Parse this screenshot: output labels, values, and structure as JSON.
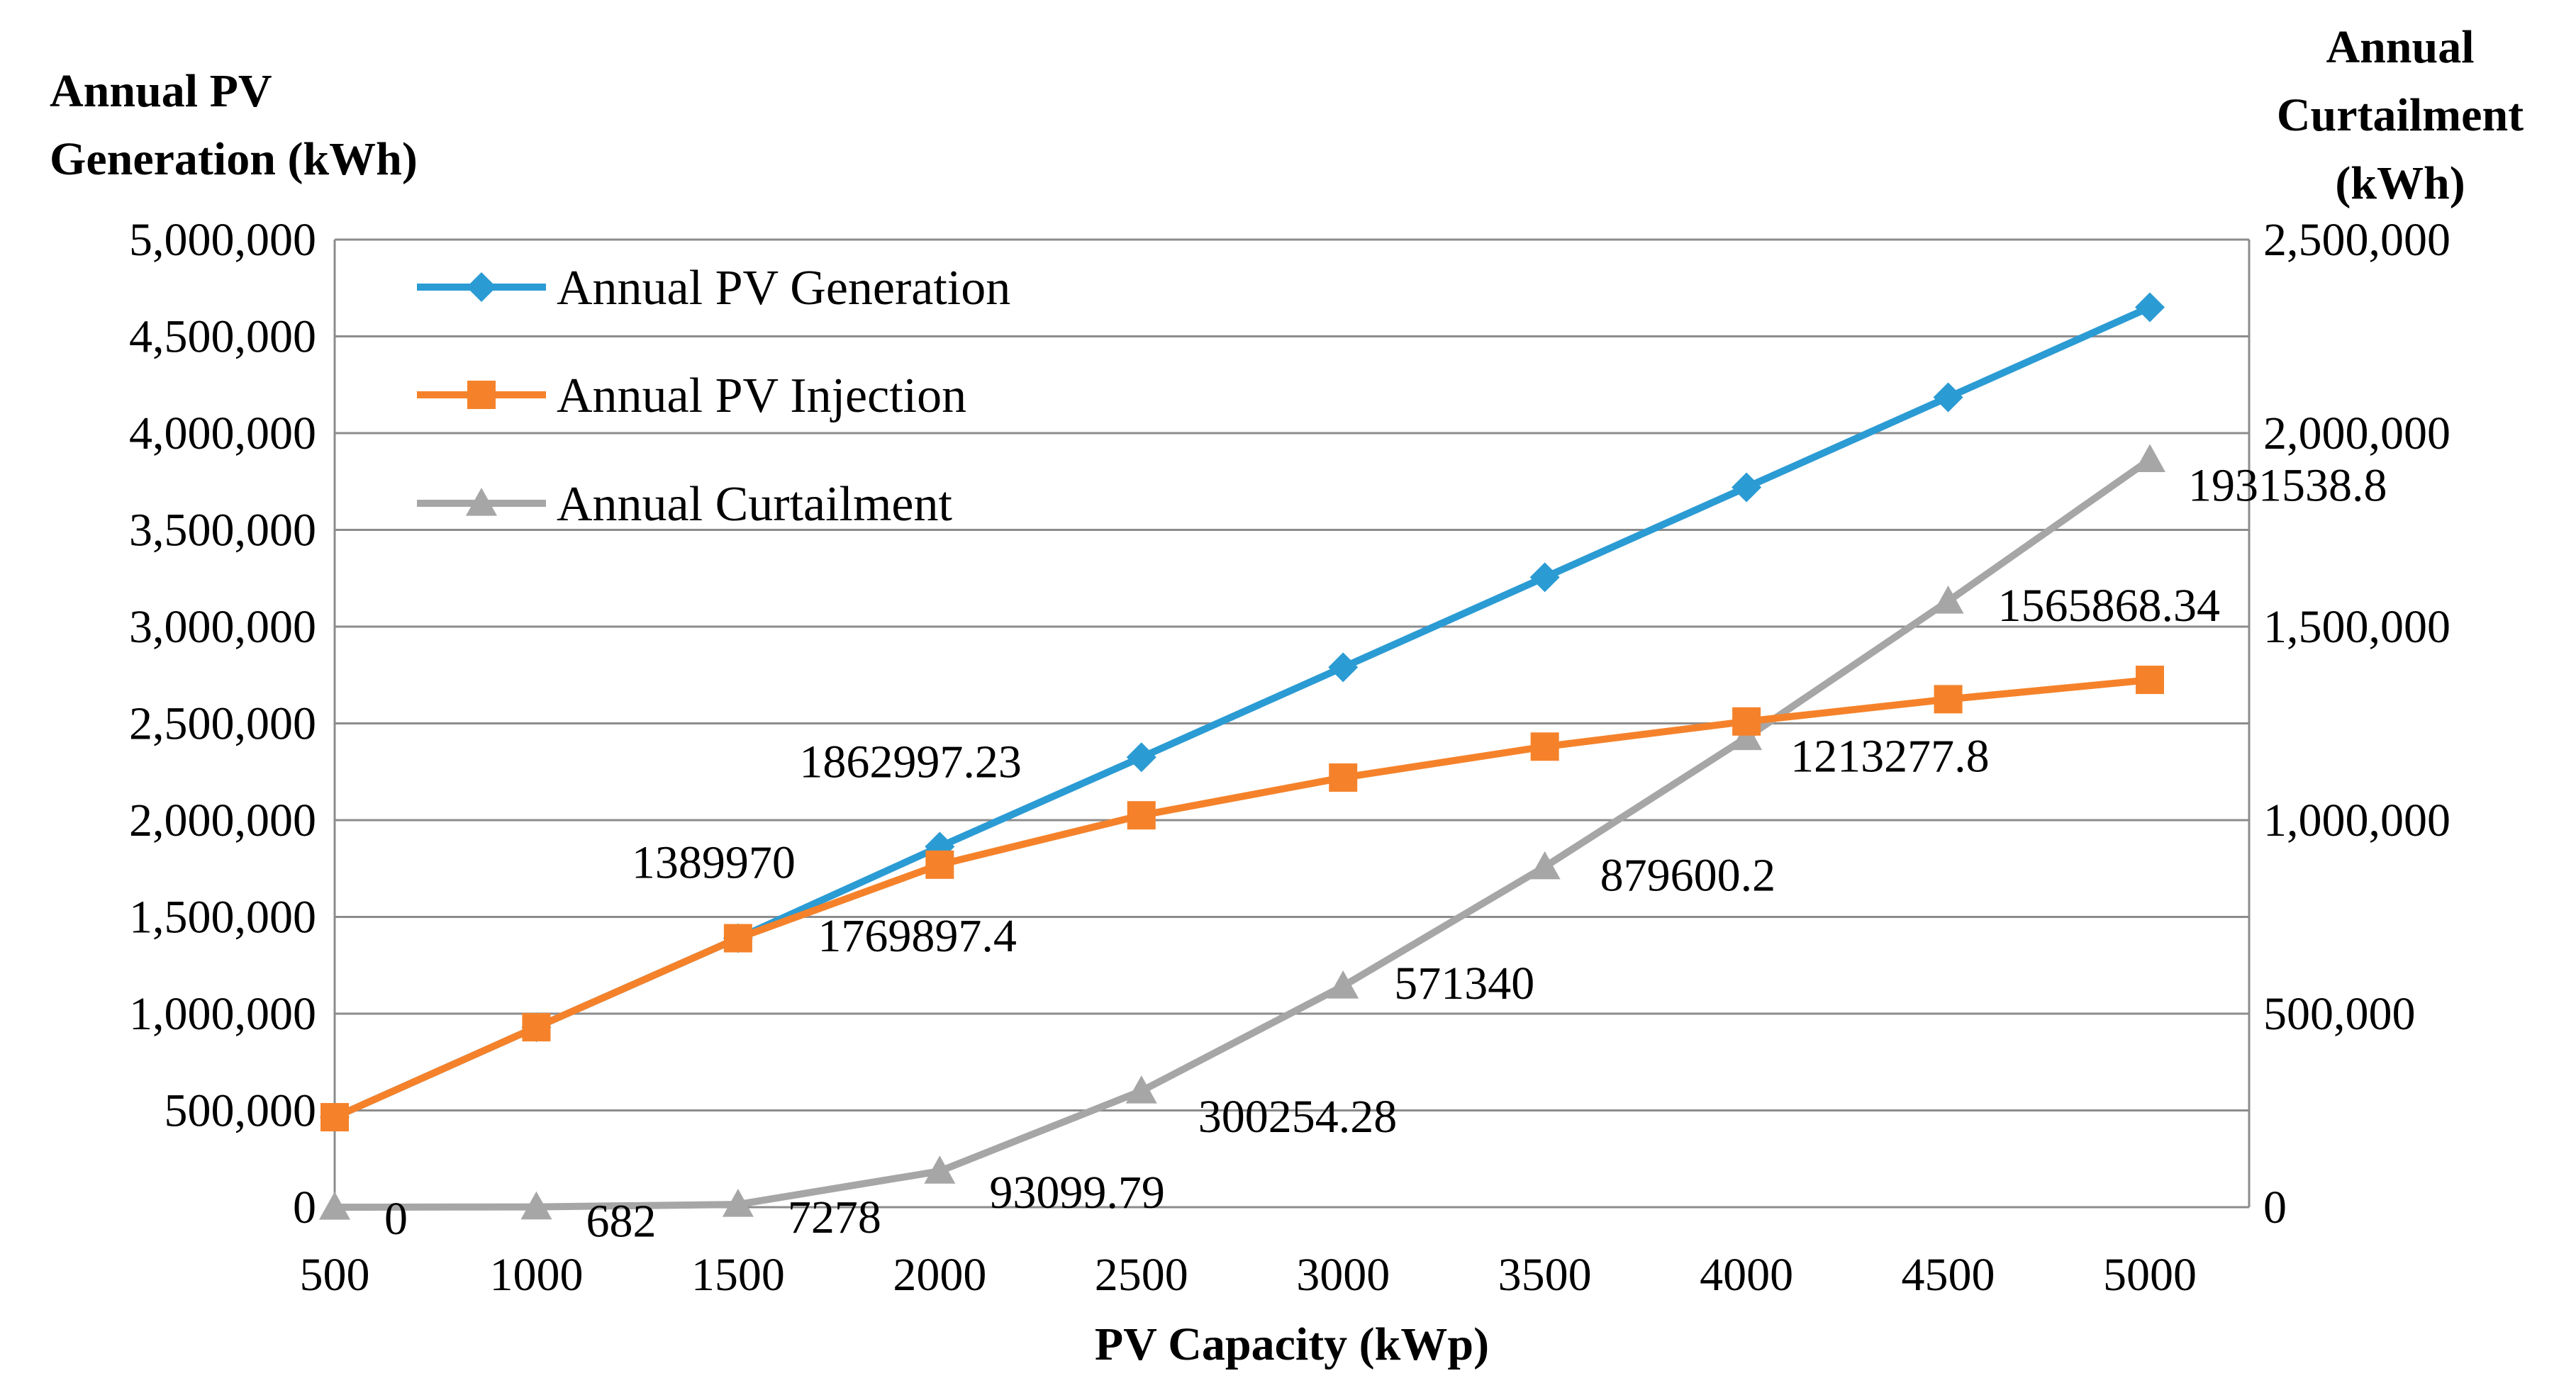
{
  "chart_data": {
    "type": "line",
    "x": [
      500,
      1000,
      1500,
      2000,
      2500,
      3000,
      3500,
      4000,
      4500,
      5000
    ],
    "xlabel": "PV Capacity (kWp)",
    "ylabel_left": [
      "Annual PV",
      "Generation (kWh)"
    ],
    "ylabel_right": [
      "Annual",
      "Curtailment",
      "(kWh)"
    ],
    "ylim_left": [
      0,
      5000000
    ],
    "ylim_right": [
      0,
      2500000
    ],
    "y_ticks_left": [
      "0",
      "500,000",
      "1,000,000",
      "1,500,000",
      "2,000,000",
      "2,500,000",
      "3,000,000",
      "3,500,000",
      "4,000,000",
      "4,500,000",
      "5,000,000"
    ],
    "y_ticks_right": [
      "0",
      "500,000",
      "1,000,000",
      "1,500,000",
      "2,000,000",
      "2,500,000"
    ],
    "x_ticks": [
      "500",
      "1000",
      "1500",
      "2000",
      "2500",
      "3000",
      "3500",
      "4000",
      "4500",
      "5000"
    ],
    "grid": true,
    "legend_position": "top-left",
    "series": [
      {
        "name": "Annual PV Generation",
        "axis": "left",
        "color": "#2b9bd3",
        "marker": "diamond",
        "values": [
          465000,
          930000,
          1389970,
          1862997.23,
          2325000,
          2790000,
          3255000,
          3720000,
          4185000,
          4650000
        ]
      },
      {
        "name": "Annual PV Injection",
        "axis": "left",
        "color": "#f5822a",
        "marker": "square",
        "values": [
          465000,
          930000,
          1389970,
          1769897.4,
          2025000,
          2220000,
          2380000,
          2510000,
          2625000,
          2725000
        ]
      },
      {
        "name": "Annual Curtailment",
        "axis": "right",
        "color": "#a6a6a6",
        "marker": "triangle",
        "values": [
          0,
          682,
          7278,
          93099.79,
          300254.28,
          571340,
          879600.2,
          1213277.8,
          1565868.34,
          1931538.8
        ]
      }
    ],
    "annotations": [
      {
        "text": "0",
        "series": "Annual Curtailment",
        "x": 500
      },
      {
        "text": "682",
        "series": "Annual Curtailment",
        "x": 1000
      },
      {
        "text": "7278",
        "series": "Annual Curtailment",
        "x": 1500
      },
      {
        "text": "93099.79",
        "series": "Annual Curtailment",
        "x": 2000
      },
      {
        "text": "300254.28",
        "series": "Annual Curtailment",
        "x": 2500
      },
      {
        "text": "571340",
        "series": "Annual Curtailment",
        "x": 3000
      },
      {
        "text": "879600.2",
        "series": "Annual Curtailment",
        "x": 3500
      },
      {
        "text": "1213277.8",
        "series": "Annual Curtailment",
        "x": 4000
      },
      {
        "text": "1565868.34",
        "series": "Annual Curtailment",
        "x": 4500
      },
      {
        "text": "1931538.8",
        "series": "Annual Curtailment",
        "x": 5000
      },
      {
        "text": "1389970",
        "series": "Annual PV Generation",
        "x": 1500
      },
      {
        "text": "1862997.23",
        "series": "Annual PV Generation",
        "x": 2000
      },
      {
        "text": "1769897.4",
        "series": "Annual PV Injection",
        "x": 2000
      }
    ]
  }
}
